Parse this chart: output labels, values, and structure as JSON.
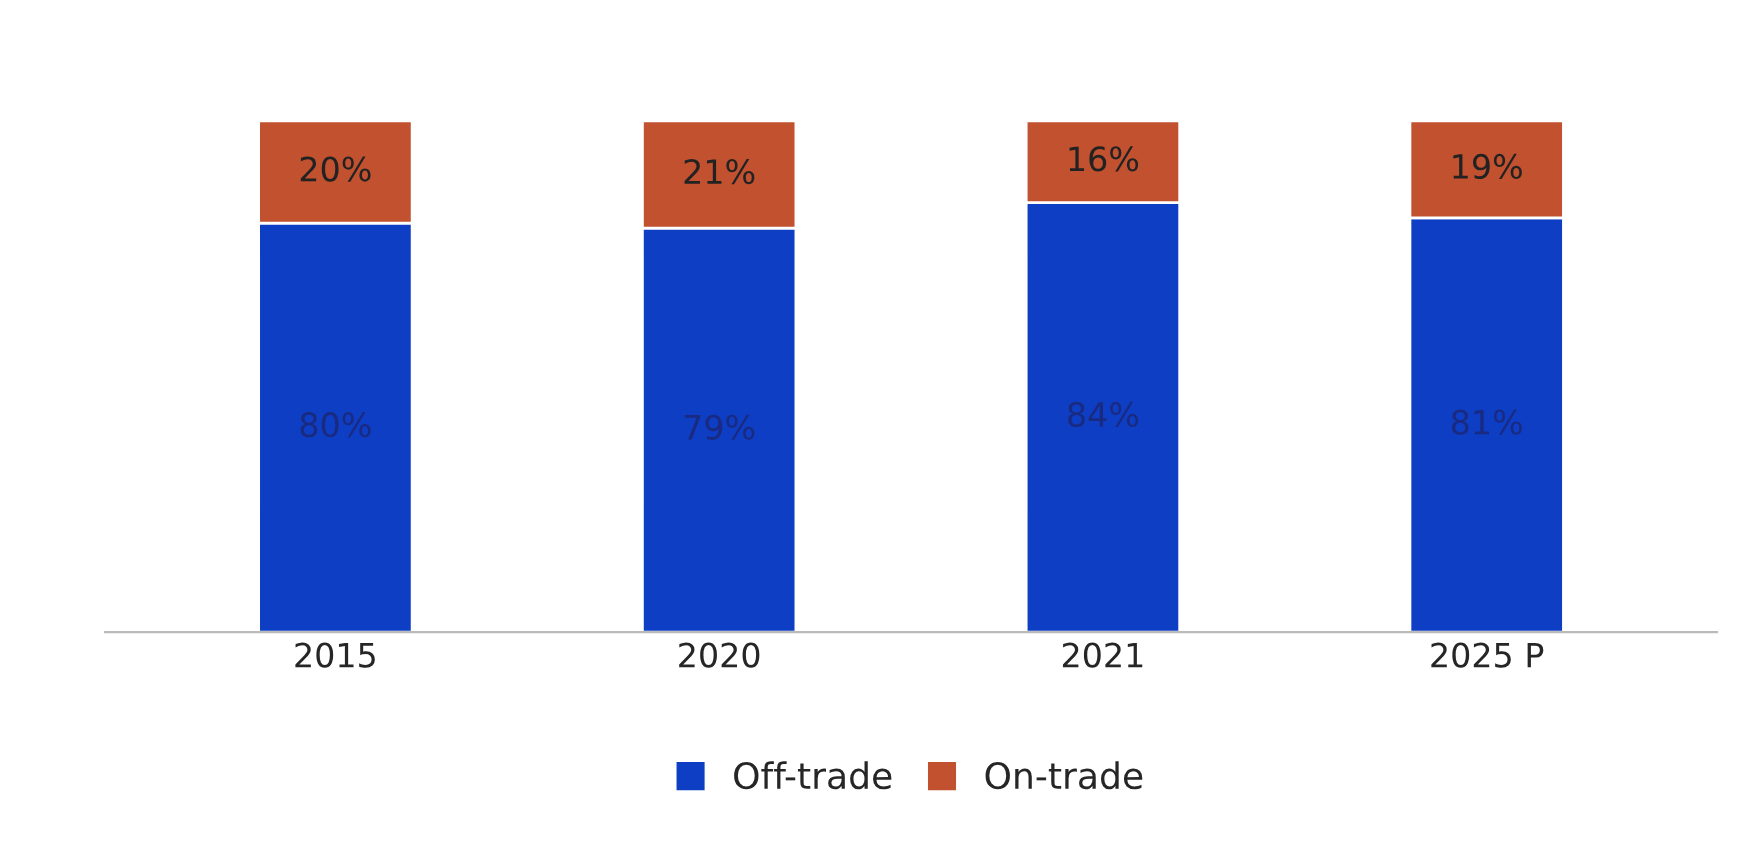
{
  "chart_data": {
    "type": "bar",
    "stacked": true,
    "categories": [
      "2015",
      "2020",
      "2021",
      "2025 P"
    ],
    "series": [
      {
        "name": "Off-trade",
        "color": "#0d3ec4",
        "values": [
          80,
          79,
          84,
          81
        ],
        "value_labels": [
          "80%",
          "79%",
          "84%",
          "81%"
        ]
      },
      {
        "name": "On-trade",
        "color": "#c1512f",
        "values": [
          20,
          21,
          16,
          19
        ],
        "value_labels": [
          "20%",
          "21%",
          "16%",
          "19%"
        ]
      }
    ],
    "legend": "bottom",
    "grid": false
  }
}
